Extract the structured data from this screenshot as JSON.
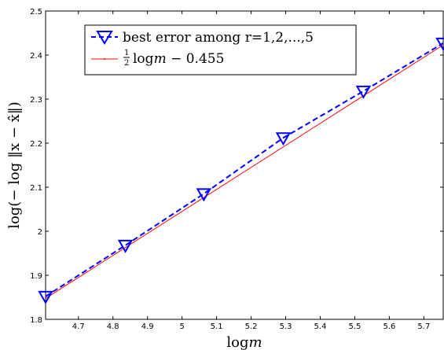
{
  "chart_data": {
    "type": "line",
    "x": [
      4.605,
      4.836,
      5.063,
      5.293,
      5.525,
      5.756
    ],
    "series": [
      {
        "name": "best error among r=1,2,...,5",
        "values": [
          1.852,
          1.968,
          2.085,
          2.212,
          2.318,
          2.427
        ],
        "color": "#0000ff",
        "line_style": "dashed",
        "marker": "down-triangle"
      },
      {
        "name_parts": [
          "1",
          "2",
          "log",
          "m",
          " − 0.455"
        ],
        "fit": {
          "slope": 0.5,
          "intercept": -0.455
        },
        "x_range": [
          4.605,
          5.756
        ],
        "color": "#ff0000",
        "line_style": "solid"
      }
    ],
    "xlabel_parts": [
      "log",
      "m"
    ],
    "ylabel": "log(− log ‖x − x̂‖)",
    "xlim": [
      4.605,
      5.756
    ],
    "ylim": [
      1.8,
      2.5
    ],
    "xticks": [
      "4.7",
      "4.8",
      "4.9",
      "5",
      "5.1",
      "5.2",
      "5.3",
      "5.4",
      "5.5",
      "5.6",
      "5.7"
    ],
    "xtick_values": [
      4.7,
      4.8,
      4.9,
      5.0,
      5.1,
      5.2,
      5.3,
      5.4,
      5.5,
      5.6,
      5.7
    ],
    "yticks": [
      "1.8",
      "1.9",
      "2",
      "2.1",
      "2.2",
      "2.3",
      "2.4",
      "2.5"
    ],
    "ytick_values": [
      1.8,
      1.9,
      2.0,
      2.1,
      2.2,
      2.3,
      2.4,
      2.5
    ],
    "grid": false,
    "legend_position": "top-left"
  }
}
